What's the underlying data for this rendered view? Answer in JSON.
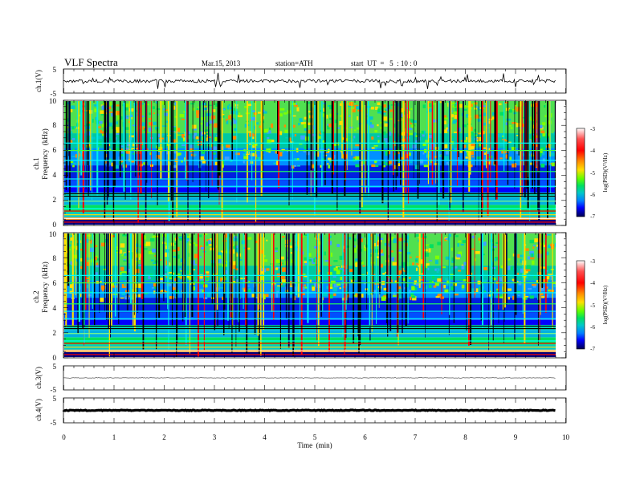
{
  "header": {
    "title": "VLF Spectra",
    "date": "Mar.15, 2013",
    "station": "station=ATH",
    "start": "start  UT  =   5  : 10 : 0"
  },
  "chart_data": [
    {
      "type": "line",
      "id": "ch1-waveform",
      "ylabel": "ch.1(V)",
      "ylim": [
        -5,
        5
      ],
      "yticks": [
        "5",
        "-5"
      ],
      "xlim": [
        0,
        10
      ],
      "level": 0
    },
    {
      "type": "heatmap",
      "id": "ch1-spectrogram",
      "ylabel_line1": "ch.1",
      "ylabel_line2": "Frequency  (kHz)",
      "ylim": [
        0,
        10
      ],
      "yticks": [
        "0",
        "2",
        "4",
        "6",
        "8",
        "10"
      ],
      "xlim": [
        0,
        10
      ],
      "data_end_min": 9.8,
      "colorbar": {
        "label": "log(PSD)(V²/Hz)",
        "range": [
          -7,
          -3
        ],
        "ticks": [
          "-3",
          "-4",
          "-5",
          "-6",
          "-7"
        ]
      }
    },
    {
      "type": "heatmap",
      "id": "ch2-spectrogram",
      "ylabel_line1": "ch.2",
      "ylabel_line2": "Frequency  (kHz)",
      "ylim": [
        0,
        10
      ],
      "yticks": [
        "0",
        "2",
        "4",
        "6",
        "8",
        "10"
      ],
      "xlim": [
        0,
        10
      ],
      "data_end_min": 9.8,
      "colorbar": {
        "label": "log(PSD)(V²/Hz)",
        "range": [
          -7,
          -3
        ],
        "ticks": [
          "-3",
          "-4",
          "-5",
          "-6",
          "-7"
        ]
      }
    },
    {
      "type": "line",
      "id": "ch3-waveform",
      "ylabel": "ch.3(V)",
      "ylim": [
        -5,
        5
      ],
      "yticks": [
        "5",
        "-5"
      ],
      "xlim": [
        0,
        10
      ],
      "level": 0
    },
    {
      "type": "line",
      "id": "ch4-waveform",
      "ylabel": "ch.4(V)",
      "ylim": [
        -5,
        5
      ],
      "yticks": [
        "5",
        "-5"
      ],
      "xlim": [
        0,
        10
      ],
      "level": 0
    }
  ],
  "xaxis": {
    "label": "Time  (min)",
    "ticks": [
      "0",
      "1",
      "2",
      "3",
      "4",
      "5",
      "6",
      "7",
      "8",
      "9",
      "10"
    ]
  },
  "colors": {
    "scale": [
      "#ffffff",
      "#ff6060",
      "#ff0000",
      "#ff8a00",
      "#ffe000",
      "#80ff00",
      "#00e060",
      "#00c8c8",
      "#0080ff",
      "#0000ff",
      "#000080",
      "#000000"
    ]
  }
}
